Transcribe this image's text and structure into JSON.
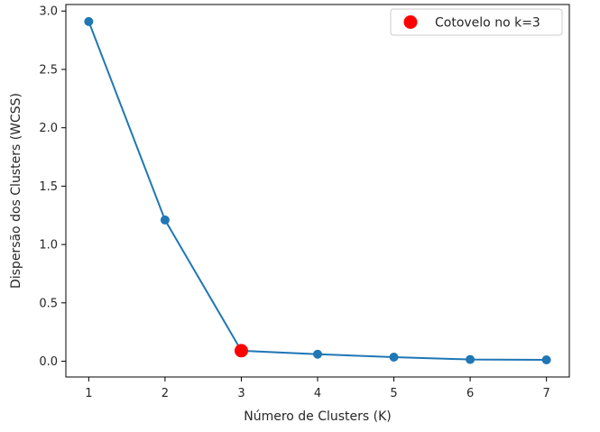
{
  "chart_data": {
    "type": "line",
    "xlabel": "Número de Clusters (K)",
    "ylabel": "Dispersão dos Clusters (WCSS)",
    "x": [
      1,
      2,
      3,
      4,
      5,
      6,
      7
    ],
    "series": [
      {
        "values": [
          2.91,
          1.21,
          0.09,
          0.06,
          0.035,
          0.015,
          0.012
        ],
        "color": "#1f77b4",
        "marker": "circle"
      }
    ],
    "highlight": {
      "label": "Cotovelo no k=3",
      "x": 3,
      "y": 0.09,
      "color": "#ff0000"
    },
    "xticks": [
      1,
      2,
      3,
      4,
      5,
      6,
      7
    ],
    "yticks": [
      "0.0",
      "0.5",
      "1.0",
      "1.5",
      "2.0",
      "2.5",
      "3.0"
    ],
    "xlim": [
      0.7,
      7.3
    ],
    "ylim": [
      -0.135,
      3.056
    ],
    "grid": false,
    "legend_position": "top-right"
  }
}
